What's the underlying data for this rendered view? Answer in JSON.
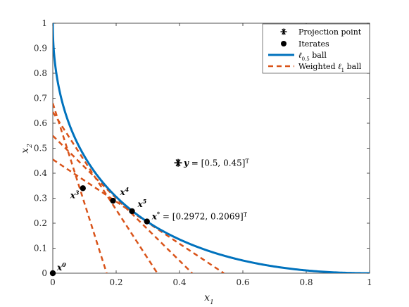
{
  "chart_data": {
    "type": "line",
    "xlabel": "x",
    "xlabel_sub": "1",
    "ylabel": "x",
    "ylabel_sub": "2",
    "xlim": [
      0,
      1
    ],
    "ylim": [
      0,
      1
    ],
    "xticks": [
      "0",
      "0.2",
      "0.4",
      "0.6",
      "0.8",
      "1"
    ],
    "yticks": [
      "0",
      "0.1",
      "0.2",
      "0.3",
      "0.4",
      "0.5",
      "0.6",
      "0.7",
      "0.8",
      "0.9",
      "1"
    ],
    "grid": false,
    "legend_position": "top-right",
    "legend": [
      {
        "label": "Projection point",
        "marker": "asterisk"
      },
      {
        "label": "Iterates",
        "marker": "dot"
      },
      {
        "label": "ℓ0.5 ball",
        "style": "solid"
      },
      {
        "label": "Weighted ℓ1 ball",
        "style": "dashed"
      }
    ],
    "colors": {
      "ball": "#0072BD",
      "weighted": "#D95319",
      "points": "#000000"
    },
    "projection_point": {
      "x": 0.5,
      "y": 0.45,
      "label": "y = [0.5, 0.45]"
    },
    "solution_label": "x* = [0.2972, 0.2069]",
    "iterates": [
      {
        "name": "x0",
        "label": "x",
        "sup": "0",
        "x": 0.0,
        "y": 0.0
      },
      {
        "name": "x3",
        "label": "x",
        "sup": "3",
        "x": 0.095,
        "y": 0.34
      },
      {
        "name": "x4",
        "label": "x",
        "sup": "4",
        "x": 0.19,
        "y": 0.29
      },
      {
        "name": "x5",
        "label": "x",
        "sup": "5",
        "x": 0.25,
        "y": 0.248
      },
      {
        "name": "xstar",
        "label": "x",
        "sup": "*",
        "x": 0.2972,
        "y": 0.2069
      }
    ],
    "weighted_lines": [
      {
        "x_intercept": 0.17,
        "y_intercept": 0.68
      },
      {
        "x_intercept": 0.33,
        "y_intercept": 0.645
      },
      {
        "x_intercept": 0.44,
        "y_intercept": 0.55
      },
      {
        "x_intercept": 0.54,
        "y_intercept": 0.455
      }
    ]
  }
}
